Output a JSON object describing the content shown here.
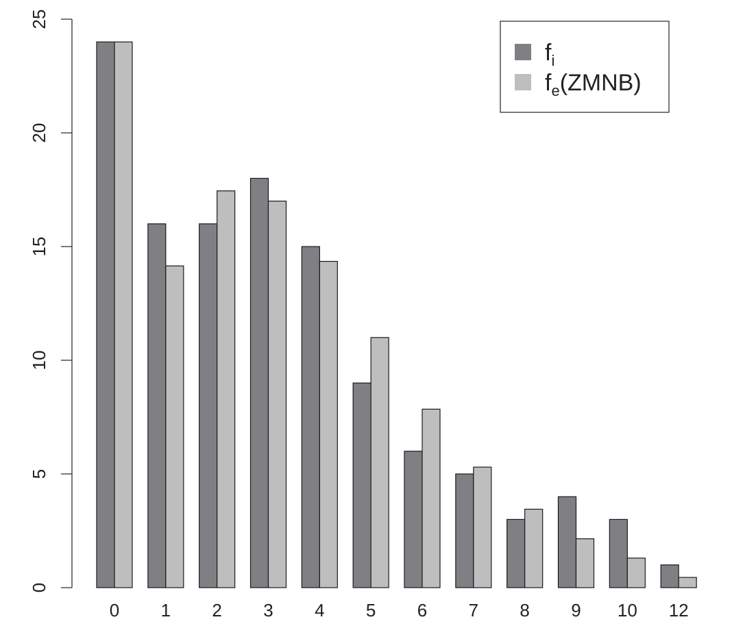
{
  "chart_data": {
    "type": "bar",
    "categories": [
      "0",
      "1",
      "2",
      "3",
      "4",
      "5",
      "6",
      "7",
      "8",
      "9",
      "10",
      "12"
    ],
    "series": [
      {
        "name": "f_i",
        "color": "#808084",
        "values": [
          24,
          16,
          16,
          18,
          15,
          9,
          6,
          5,
          3,
          4,
          3,
          1
        ]
      },
      {
        "name": "f_e(ZMNB)",
        "color": "#bebebe",
        "values": [
          24,
          14.15,
          17.45,
          17,
          14.35,
          11,
          7.85,
          5.3,
          3.45,
          2.15,
          1.3,
          0.45
        ]
      }
    ],
    "yticks": [
      0,
      5,
      10,
      15,
      20,
      25
    ],
    "ylim": [
      0,
      25
    ],
    "legend": {
      "placement": "top-right",
      "items": [
        {
          "main": "f",
          "sub": "i",
          "suffix": ""
        },
        {
          "main": "f",
          "sub": "e",
          "suffix": "(ZMNB)"
        }
      ]
    },
    "grid": false,
    "title": "",
    "xlabel": "",
    "ylabel": ""
  }
}
